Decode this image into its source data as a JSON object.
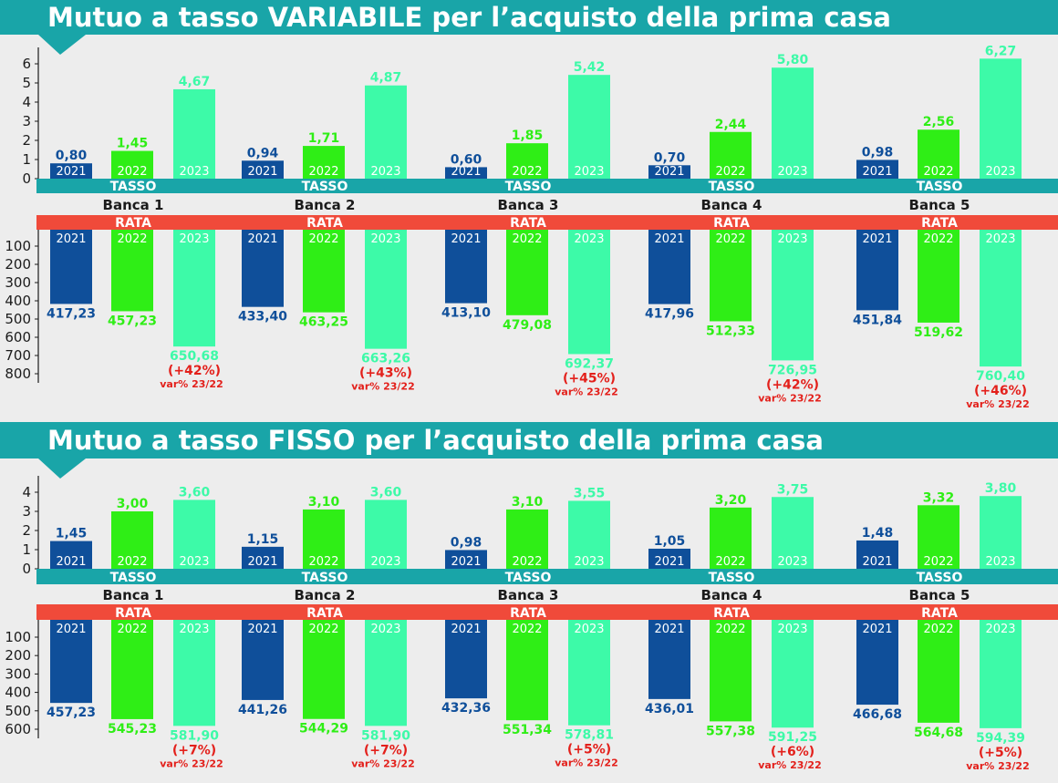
{
  "colors": {
    "teal": "#19a5a8",
    "red": "#f04a3a",
    "blue": "#0f4f9a",
    "green": "#2fee16",
    "mint": "#3dfaa8",
    "dark": "#1b1b1b",
    "varred": "#e3201b"
  },
  "years": [
    "2021",
    "2022",
    "2023"
  ],
  "banks": [
    "Banca 1",
    "Banca 2",
    "Banca 3",
    "Banca 4",
    "Banca 5"
  ],
  "labels": {
    "tasso": "TASSO",
    "rata": "RATA",
    "var": "var% 23/22"
  },
  "chart_data": [
    {
      "type": "bar",
      "title": "Mutuo a tasso VARIABILE per l’acquisto della prima casa",
      "tasso": {
        "yticks": [
          "0",
          "1",
          "2",
          "3",
          "4",
          "5",
          "6"
        ],
        "ylim": [
          0,
          6.5
        ],
        "values": [
          [
            0.8,
            1.45,
            4.67
          ],
          [
            0.94,
            1.71,
            4.87
          ],
          [
            0.6,
            1.85,
            5.42
          ],
          [
            0.7,
            2.44,
            5.8
          ],
          [
            0.98,
            2.56,
            6.27
          ]
        ],
        "labels": [
          [
            "0,80",
            "1,45",
            "4,67"
          ],
          [
            "0,94",
            "1,71",
            "4,87"
          ],
          [
            "0,60",
            "1,85",
            "5,42"
          ],
          [
            "0,70",
            "2,44",
            "5,80"
          ],
          [
            "0,98",
            "2,56",
            "6,27"
          ]
        ]
      },
      "rata": {
        "yticks": [
          "100",
          "200",
          "300",
          "400",
          "500",
          "600",
          "700",
          "800"
        ],
        "ylim": [
          0,
          800
        ],
        "values": [
          [
            417.23,
            457.23,
            650.68
          ],
          [
            433.4,
            463.25,
            663.26
          ],
          [
            413.1,
            479.08,
            692.37
          ],
          [
            417.96,
            512.33,
            726.95
          ],
          [
            451.84,
            519.62,
            760.4
          ]
        ],
        "labels": [
          [
            "417,23",
            "457,23",
            "650,68"
          ],
          [
            "433,40",
            "463,25",
            "663,26"
          ],
          [
            "413,10",
            "479,08",
            "692,37"
          ],
          [
            "417,96",
            "512,33",
            "726,95"
          ],
          [
            "451,84",
            "519,62",
            "760,40"
          ]
        ],
        "var": [
          "(+42%)",
          "(+43%)",
          "(+45%)",
          "(+42%)",
          "(+46%)"
        ]
      }
    },
    {
      "type": "bar",
      "title": "Mutuo a tasso FISSO per l’acquisto della prima casa",
      "tasso": {
        "yticks": [
          "0",
          "1",
          "2",
          "3",
          "4"
        ],
        "ylim": [
          0,
          4.5
        ],
        "values": [
          [
            1.45,
            3.0,
            3.6
          ],
          [
            1.15,
            3.1,
            3.6
          ],
          [
            0.98,
            3.1,
            3.55
          ],
          [
            1.05,
            3.2,
            3.75
          ],
          [
            1.48,
            3.32,
            3.8
          ]
        ],
        "labels": [
          [
            "1,45",
            "3,00",
            "3,60"
          ],
          [
            "1,15",
            "3,10",
            "3,60"
          ],
          [
            "0,98",
            "3,10",
            "3,55"
          ],
          [
            "1,05",
            "3,20",
            "3,75"
          ],
          [
            "1,48",
            "3,32",
            "3,80"
          ]
        ]
      },
      "rata": {
        "yticks": [
          "100",
          "200",
          "300",
          "400",
          "500",
          "600"
        ],
        "ylim": [
          0,
          600
        ],
        "values": [
          [
            457.23,
            545.23,
            581.9
          ],
          [
            441.26,
            544.29,
            581.9
          ],
          [
            432.36,
            551.34,
            578.81
          ],
          [
            436.01,
            557.38,
            591.25
          ],
          [
            466.68,
            564.68,
            594.39
          ]
        ],
        "labels": [
          [
            "457,23",
            "545,23",
            "581,90"
          ],
          [
            "441,26",
            "544,29",
            "581,90"
          ],
          [
            "432,36",
            "551,34",
            "578,81"
          ],
          [
            "436,01",
            "557,38",
            "591,25"
          ],
          [
            "466,68",
            "564,68",
            "594,39"
          ]
        ],
        "var": [
          "(+7%)",
          "(+7%)",
          "(+5%)",
          "(+6%)",
          "(+5%)"
        ]
      }
    }
  ]
}
